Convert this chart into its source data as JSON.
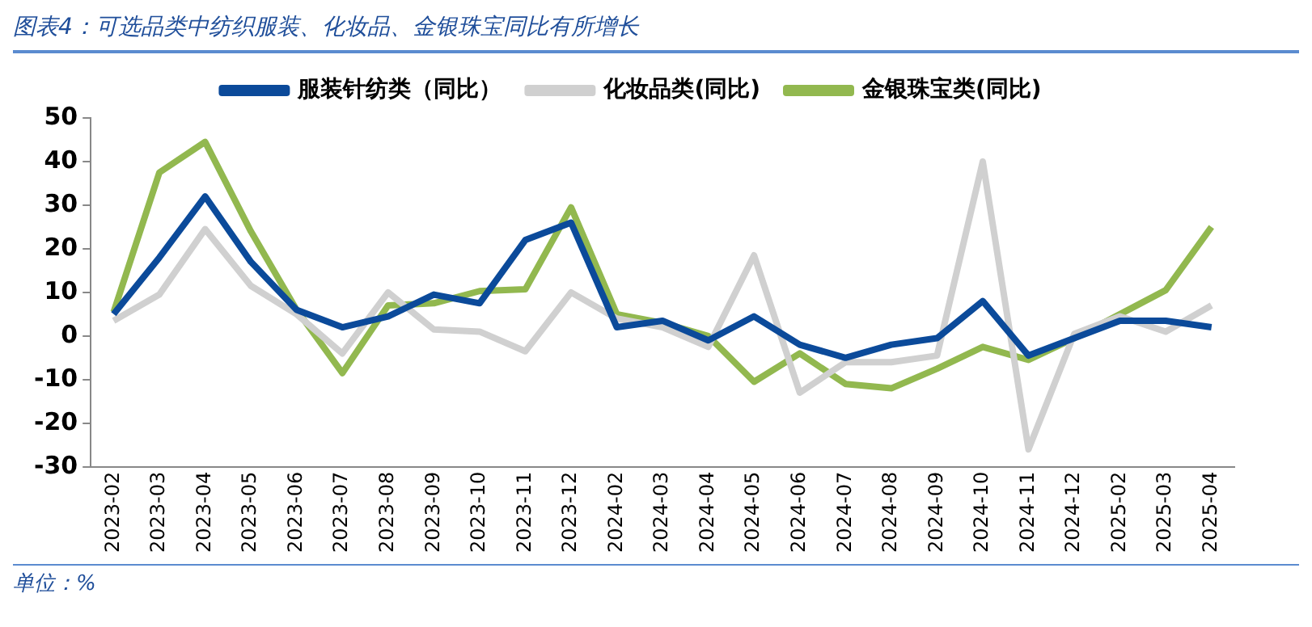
{
  "chart_data": {
    "type": "line",
    "title": "图表4：可选品类中纺织服装、化妆品、金银珠宝同比有所增长",
    "annotations": [
      "单位：%"
    ],
    "categories": [
      "2023-02",
      "2023-03",
      "2023-04",
      "2023-05",
      "2023-06",
      "2023-07",
      "2023-08",
      "2023-09",
      "2023-10",
      "2023-11",
      "2023-12",
      "2024-02",
      "2024-03",
      "2024-04",
      "2024-05",
      "2024-06",
      "2024-07",
      "2024-08",
      "2024-09",
      "2024-10",
      "2024-11",
      "2024-12",
      "2025-02",
      "2025-03",
      "2025-04"
    ],
    "series": [
      {
        "name": "服装针纺类（同比）",
        "color": "#0b4a9a",
        "values": [
          5,
          18,
          32,
          17,
          6,
          2,
          4.5,
          9.5,
          7.5,
          22,
          26,
          2,
          3.5,
          -1,
          4.5,
          -2,
          -5,
          -2,
          -0.5,
          8,
          -4.5,
          -0.5,
          3.5,
          3.5,
          2
        ]
      },
      {
        "name": "化妆品类(同比)",
        "color": "#d0d0d0",
        "values": [
          3.5,
          9.5,
          24.5,
          11.5,
          5,
          -4,
          10,
          1.5,
          1,
          -3.5,
          10,
          4,
          2,
          -2.5,
          18.5,
          -13,
          -6,
          -6,
          -4.5,
          40,
          -26,
          0.5,
          4.5,
          1,
          7
        ]
      },
      {
        "name": "金银珠宝类(同比)",
        "color": "#92b84f",
        "values": [
          5.5,
          37.5,
          44.5,
          24,
          6,
          -8.5,
          7,
          7.5,
          10.3,
          10.7,
          29.5,
          5,
          3,
          0,
          -10.5,
          -4,
          -11,
          -12,
          -7.5,
          -2.5,
          -5.5,
          -0.5,
          5,
          10.5,
          25
        ]
      }
    ],
    "ylim": [
      -30,
      50
    ],
    "yticks": [
      -30,
      -20,
      -10,
      0,
      10,
      20,
      30,
      40,
      50
    ],
    "grid": false,
    "legend": "top",
    "marker": "none",
    "line_style": "solid"
  }
}
